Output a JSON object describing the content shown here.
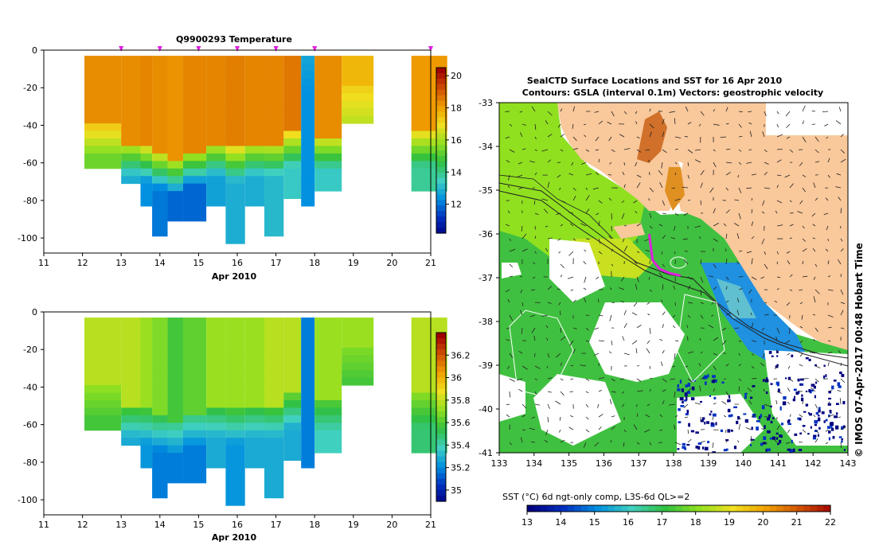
{
  "left_top": {
    "title": "Q9900293  Temperature",
    "xlabel": "Apr 2010",
    "xticks": [
      "11",
      "12",
      "13",
      "14",
      "15",
      "16",
      "17",
      "18",
      "19",
      "20",
      "21"
    ],
    "yticks": [
      "0",
      "-20",
      "-40",
      "-60",
      "-80",
      "-100"
    ],
    "colorbar_ticks": [
      "20",
      "18",
      "16",
      "14",
      "12"
    ]
  },
  "left_bottom": {
    "xlabel": "Apr 2010",
    "xticks": [
      "11",
      "12",
      "13",
      "14",
      "15",
      "16",
      "17",
      "18",
      "19",
      "20",
      "21"
    ],
    "yticks": [
      "0",
      "-20",
      "-40",
      "-60",
      "-80",
      "-100"
    ],
    "colorbar_ticks": [
      "36.2",
      "36",
      "35.8",
      "35.6",
      "35.4",
      "35.2",
      "35"
    ]
  },
  "map": {
    "title_line1": "SealCTD Surface Locations and SST for 16 Apr 2010",
    "title_line2": "Contours: GSLA (interval 0.1m) Vectors: geostrophic velocity",
    "lat_ticks": [
      "-33",
      "-34",
      "-35",
      "-36",
      "-37",
      "-38",
      "-39",
      "-40",
      "-41"
    ],
    "lon_ticks": [
      "133",
      "134",
      "135",
      "136",
      "137",
      "138",
      "139",
      "140",
      "141",
      "142",
      "143"
    ],
    "colorbar_label": "SST (°C) 6d ngt-only comp, L3S-6d QL>=2",
    "colorbar_ticks": [
      "13",
      "14",
      "15",
      "16",
      "17",
      "18",
      "19",
      "20",
      "21",
      "22"
    ],
    "credit": "© IMOS 07-Apr-2017 00:48 Hobart Time"
  },
  "colors": {
    "land": "#f9c89b",
    "track": "#e020e0",
    "sst_scale": [
      "#000080",
      "#0030c0",
      "#0090e0",
      "#40d0c0",
      "#30c040",
      "#90e020",
      "#f0e020",
      "#f0a000",
      "#d05000",
      "#a00000"
    ]
  },
  "chart_data": [
    {
      "type": "heatmap",
      "title": "Q9900293  Temperature",
      "xlabel": "Apr 2010",
      "ylabel": "",
      "xlim": [
        11,
        21
      ],
      "ylim": [
        -108,
        0
      ],
      "zlim": [
        10.2,
        20.5
      ],
      "profiles": [
        {
          "t": 12.05,
          "mld": 35,
          "bottom": 57,
          "surf": 18.5,
          "deep": 15.5
        },
        {
          "t": 13.0,
          "mld": 45,
          "bottom": 67,
          "surf": 18.5,
          "deep": 13.0
        },
        {
          "t": 13.5,
          "mld": 48,
          "bottom": 78,
          "surf": 18.6,
          "deep": 12.5
        },
        {
          "t": 13.8,
          "mld": 52,
          "bottom": 93,
          "surf": 18.5,
          "deep": 12.2
        },
        {
          "t": 14.2,
          "mld": 55,
          "bottom": 86,
          "surf": 18.4,
          "deep": 12.0
        },
        {
          "t": 14.6,
          "mld": 50,
          "bottom": 86,
          "surf": 18.6,
          "deep": 12.0
        },
        {
          "t": 15.2,
          "mld": 45,
          "bottom": 80,
          "surf": 18.6,
          "deep": 12.8
        },
        {
          "t": 15.7,
          "mld": 48,
          "bottom": 97,
          "surf": 18.7,
          "deep": 13.0
        },
        {
          "t": 16.2,
          "mld": 45,
          "bottom": 78,
          "surf": 18.6,
          "deep": 13.0
        },
        {
          "t": 16.7,
          "mld": 45,
          "bottom": 93,
          "surf": 18.6,
          "deep": 13.2
        },
        {
          "t": 17.2,
          "mld": 40,
          "bottom": 75,
          "surf": 18.8,
          "deep": 13.5
        },
        {
          "t": 17.65,
          "mld": 0,
          "bottom": 80,
          "surf": 13.0,
          "deep": 12.5
        },
        {
          "t": 18.0,
          "mld": 42,
          "bottom": 70,
          "surf": 18.5,
          "deep": 13.5
        },
        {
          "t": 18.7,
          "mld": 15,
          "bottom": 35,
          "surf": 17.8,
          "deep": 16.5
        },
        {
          "t": 20.5,
          "mld": 40,
          "bottom": 70,
          "surf": 18.3,
          "deep": 14.0
        }
      ],
      "surface_markers": [
        13,
        14,
        15,
        16,
        17,
        18,
        21
      ]
    },
    {
      "type": "heatmap",
      "title": "",
      "xlabel": "Apr 2010",
      "ylabel": "",
      "xlim": [
        11,
        21
      ],
      "ylim": [
        -108,
        0
      ],
      "zlim": [
        34.9,
        36.4
      ],
      "profiles": [
        {
          "t": 12.05,
          "mld": 35,
          "bottom": 57,
          "surf": 35.8,
          "deep": 35.6
        },
        {
          "t": 13.0,
          "mld": 45,
          "bottom": 67,
          "surf": 35.8,
          "deep": 35.3
        },
        {
          "t": 13.5,
          "mld": 48,
          "bottom": 78,
          "surf": 35.75,
          "deep": 35.25
        },
        {
          "t": 13.8,
          "mld": 52,
          "bottom": 93,
          "surf": 35.7,
          "deep": 35.2
        },
        {
          "t": 14.2,
          "mld": 55,
          "bottom": 86,
          "surf": 35.6,
          "deep": 35.2
        },
        {
          "t": 14.6,
          "mld": 50,
          "bottom": 86,
          "surf": 35.65,
          "deep": 35.2
        },
        {
          "t": 15.2,
          "mld": 45,
          "bottom": 80,
          "surf": 35.75,
          "deep": 35.3
        },
        {
          "t": 15.7,
          "mld": 48,
          "bottom": 97,
          "surf": 35.75,
          "deep": 35.25
        },
        {
          "t": 16.2,
          "mld": 45,
          "bottom": 78,
          "surf": 35.75,
          "deep": 35.3
        },
        {
          "t": 16.7,
          "mld": 45,
          "bottom": 93,
          "surf": 35.8,
          "deep": 35.3
        },
        {
          "t": 17.2,
          "mld": 40,
          "bottom": 75,
          "surf": 35.8,
          "deep": 35.3
        },
        {
          "t": 17.65,
          "mld": 0,
          "bottom": 80,
          "surf": 35.2,
          "deep": 35.2
        },
        {
          "t": 18.0,
          "mld": 42,
          "bottom": 70,
          "surf": 35.75,
          "deep": 35.4
        },
        {
          "t": 18.7,
          "mld": 15,
          "bottom": 35,
          "surf": 35.75,
          "deep": 35.6
        },
        {
          "t": 20.5,
          "mld": 40,
          "bottom": 70,
          "surf": 35.8,
          "deep": 35.5
        }
      ]
    },
    {
      "type": "heatmap",
      "title": "SealCTD Surface Locations and SST for 16 Apr 2010",
      "xlabel": "",
      "ylabel": "",
      "xlim": [
        133,
        143
      ],
      "ylim": [
        -41,
        -33
      ],
      "zlim": [
        13,
        22
      ],
      "colorbar_label": "SST (°C) 6d ngt-only comp, L3S-6d QL>=2",
      "seal_track": [
        [
          137.3,
          -36.0
        ],
        [
          137.35,
          -36.3
        ],
        [
          137.4,
          -36.6
        ],
        [
          137.6,
          -36.8
        ],
        [
          137.9,
          -36.9
        ],
        [
          138.2,
          -36.95
        ]
      ]
    }
  ]
}
